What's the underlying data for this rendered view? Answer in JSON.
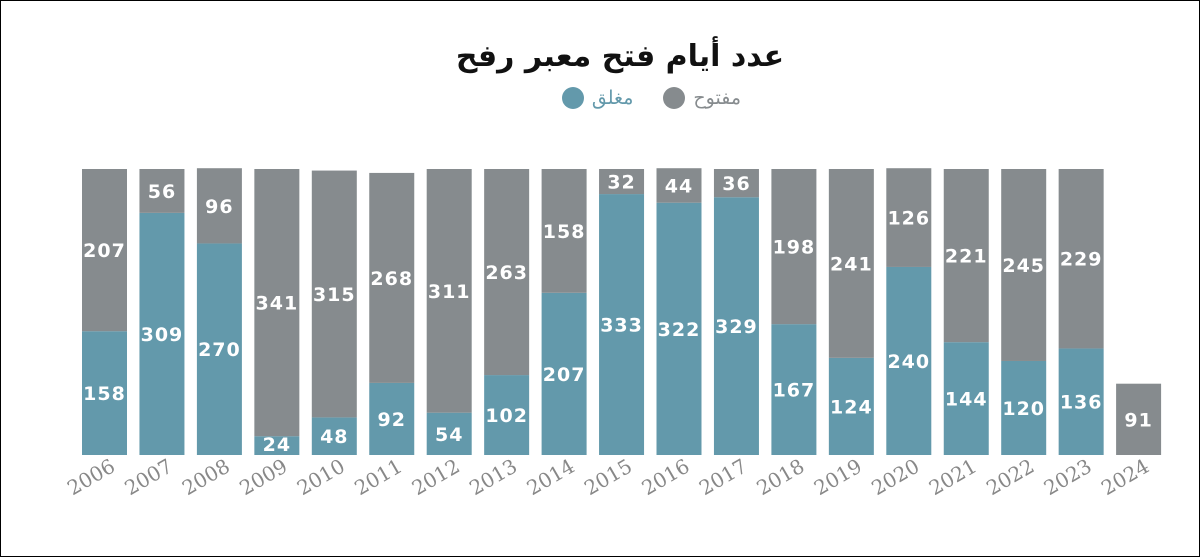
{
  "chart_data": {
    "type": "bar",
    "stacked": true,
    "title": "عدد أيام فتح معبر رفح",
    "categories": [
      "2006",
      "2007",
      "2008",
      "2009",
      "2010",
      "2011",
      "2012",
      "2013",
      "2014",
      "2015",
      "2016",
      "2017",
      "2018",
      "2019",
      "2020",
      "2021",
      "2022",
      "2023",
      "2024"
    ],
    "series": [
      {
        "name": "مغلق",
        "color": "#6399ab",
        "values": [
          158,
          309,
          270,
          24,
          48,
          92,
          54,
          102,
          207,
          333,
          322,
          329,
          167,
          124,
          240,
          144,
          120,
          136,
          null
        ]
      },
      {
        "name": "مفتوح",
        "color": "#868b8e",
        "values": [
          207,
          56,
          96,
          341,
          315,
          268,
          311,
          263,
          158,
          32,
          44,
          36,
          198,
          241,
          126,
          221,
          245,
          229,
          91
        ]
      }
    ],
    "legend_position": "top-center",
    "ylim": [
      0,
      366
    ],
    "grid": false,
    "xlabel": "",
    "ylabel": ""
  }
}
